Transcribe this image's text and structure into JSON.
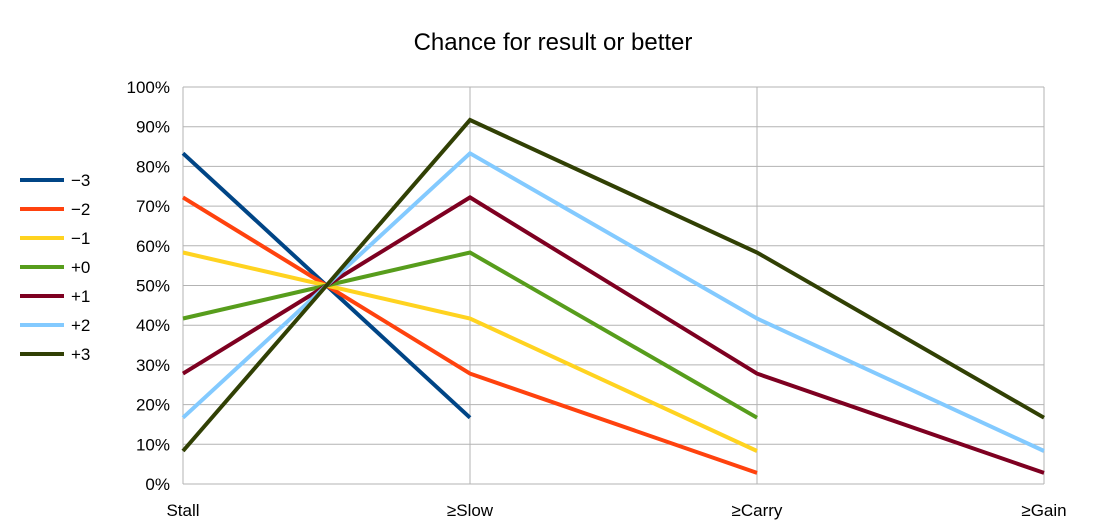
{
  "chart_data": {
    "type": "line",
    "title": "Chance for result or better",
    "xlabel": "",
    "ylabel": "",
    "categories": [
      "Stall",
      "≥Slow",
      "≥Carry",
      "≥Gain"
    ],
    "y_ticks": [
      "0%",
      "10%",
      "20%",
      "30%",
      "40%",
      "50%",
      "60%",
      "70%",
      "80%",
      "90%",
      "100%"
    ],
    "ylim": [
      0,
      100
    ],
    "grid": true,
    "legend_position": "left",
    "series": [
      {
        "name": "−3",
        "color": "#004586",
        "points": [
          [
            0,
            83.3
          ],
          [
            0.5,
            50
          ],
          [
            1,
            16.7
          ]
        ]
      },
      {
        "name": "−2",
        "color": "#ff420e",
        "points": [
          [
            0,
            72.2
          ],
          [
            0.5,
            50
          ],
          [
            1,
            27.8
          ],
          [
            2,
            2.8
          ]
        ]
      },
      {
        "name": "−1",
        "color": "#ffd320",
        "points": [
          [
            0,
            58.3
          ],
          [
            0.5,
            50
          ],
          [
            1,
            41.7
          ],
          [
            2,
            8.3
          ]
        ]
      },
      {
        "name": "+0",
        "color": "#579d1c",
        "points": [
          [
            0,
            41.7
          ],
          [
            0.5,
            50
          ],
          [
            1,
            58.3
          ],
          [
            2,
            16.7
          ]
        ]
      },
      {
        "name": "+1",
        "color": "#7e0021",
        "points": [
          [
            0,
            27.8
          ],
          [
            0.5,
            50
          ],
          [
            1,
            72.2
          ],
          [
            2,
            27.8
          ],
          [
            3,
            2.8
          ]
        ]
      },
      {
        "name": "+2",
        "color": "#83caff",
        "points": [
          [
            0,
            16.7
          ],
          [
            0.5,
            50
          ],
          [
            1,
            83.3
          ],
          [
            2,
            41.7
          ],
          [
            3,
            8.3
          ]
        ]
      },
      {
        "name": "+3",
        "color": "#314004",
        "points": [
          [
            0,
            8.3
          ],
          [
            0.5,
            50
          ],
          [
            1,
            91.7
          ],
          [
            2,
            58.3
          ],
          [
            3,
            16.7
          ]
        ]
      }
    ]
  }
}
